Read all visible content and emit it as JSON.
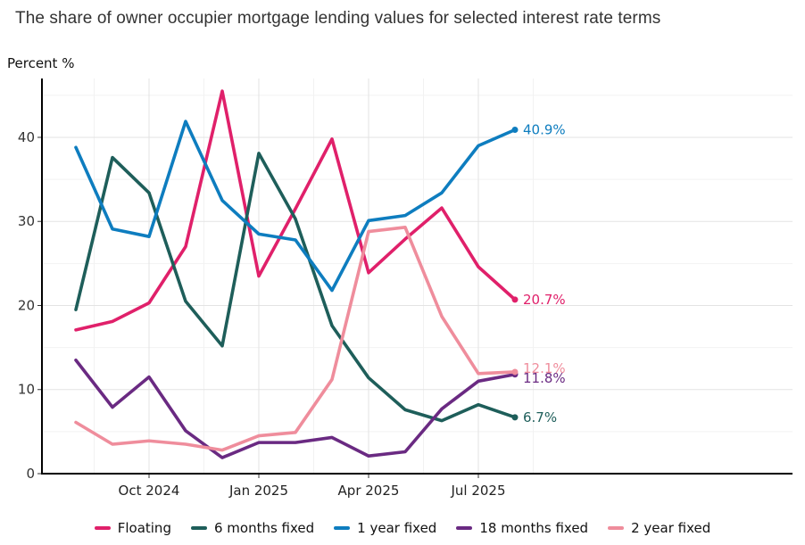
{
  "chart_data": {
    "type": "line",
    "title": "The share of owner occupier mortgage lending values for selected interest rate terms",
    "ylabel": "Percent %",
    "ylim": [
      0,
      47
    ],
    "yticks": [
      0,
      10,
      20,
      30,
      40
    ],
    "x": [
      "2024-08",
      "2024-09",
      "2024-10",
      "2024-11",
      "2024-12",
      "2025-01",
      "2025-02",
      "2025-03",
      "2025-04",
      "2025-05",
      "2025-06",
      "2025-07",
      "2025-08"
    ],
    "xticks": [
      {
        "x": "2024-10",
        "label": "Oct 2024"
      },
      {
        "x": "2025-01",
        "label": "Jan 2025"
      },
      {
        "x": "2025-04",
        "label": "Apr 2025"
      },
      {
        "x": "2025-07",
        "label": "Jul 2025"
      }
    ],
    "grid": true,
    "legend_position": "bottom",
    "series": [
      {
        "name": "Floating",
        "color": "#e0206a",
        "end_label": "20.7%",
        "values": [
          17.1,
          18.1,
          20.3,
          27.0,
          45.5,
          23.5,
          31.5,
          39.8,
          23.9,
          27.9,
          31.6,
          24.6,
          20.7
        ]
      },
      {
        "name": "6 months fixed",
        "color": "#1e5e5a",
        "end_label": "6.7%",
        "values": [
          19.5,
          37.6,
          33.4,
          20.5,
          15.2,
          38.1,
          30.3,
          17.6,
          11.4,
          7.6,
          6.3,
          8.2,
          6.7
        ]
      },
      {
        "name": "1 year fixed",
        "color": "#0e7dbf",
        "end_label": "40.9%",
        "values": [
          38.8,
          29.1,
          28.2,
          41.9,
          32.5,
          28.5,
          27.8,
          21.8,
          30.1,
          30.7,
          33.4,
          39.0,
          40.9
        ]
      },
      {
        "name": "18 months fixed",
        "color": "#6a2a82",
        "end_label": "11.8%",
        "values": [
          13.5,
          7.9,
          11.5,
          5.1,
          1.9,
          3.7,
          3.7,
          4.3,
          2.1,
          2.6,
          7.7,
          11.0,
          11.8
        ]
      },
      {
        "name": "2 year fixed",
        "color": "#ef8d9c",
        "end_label": "12.1%",
        "values": [
          6.1,
          3.5,
          3.9,
          3.5,
          2.8,
          4.5,
          4.9,
          11.2,
          28.8,
          29.3,
          18.7,
          11.9,
          12.1
        ]
      }
    ]
  }
}
